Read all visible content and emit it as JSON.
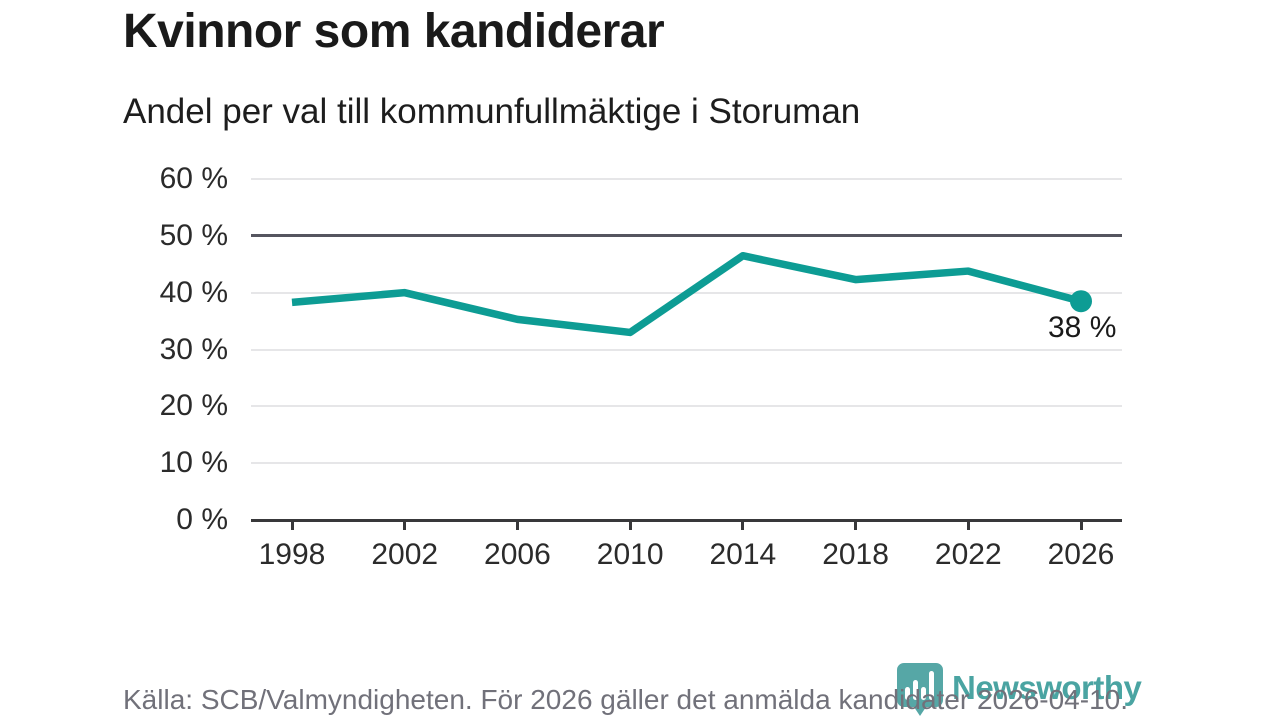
{
  "header": {
    "title": "Kvinnor som kandiderar",
    "subtitle": "Andel per val till kommunfullmäktige i Storuman"
  },
  "chart_data": {
    "type": "line",
    "title": "Kvinnor som kandiderar",
    "subtitle": "Andel per val till kommunfullmäktige i Storuman",
    "categories": [
      "1998",
      "2002",
      "2006",
      "2010",
      "2014",
      "2018",
      "2022",
      "2026"
    ],
    "values": [
      38.3,
      40.0,
      35.3,
      33.0,
      46.5,
      42.3,
      43.8,
      38.5
    ],
    "xlabel": "",
    "ylabel": "",
    "ylim": [
      0,
      60
    ],
    "ytick_step": 10,
    "ytick_suffix": " %",
    "grid": true,
    "emphasized_gridline": 50,
    "legend": "none",
    "last_point_label": "38 %",
    "line_color": "#0d9c94",
    "marker_color": "#0d9c94"
  },
  "footer": {
    "source": "Källa: SCB/Valmyndigheten. För 2026 gäller det anmälda kandidater 2026-04-10."
  },
  "logo": {
    "text": "Newsworthy",
    "brand_color": "#45a09e"
  }
}
